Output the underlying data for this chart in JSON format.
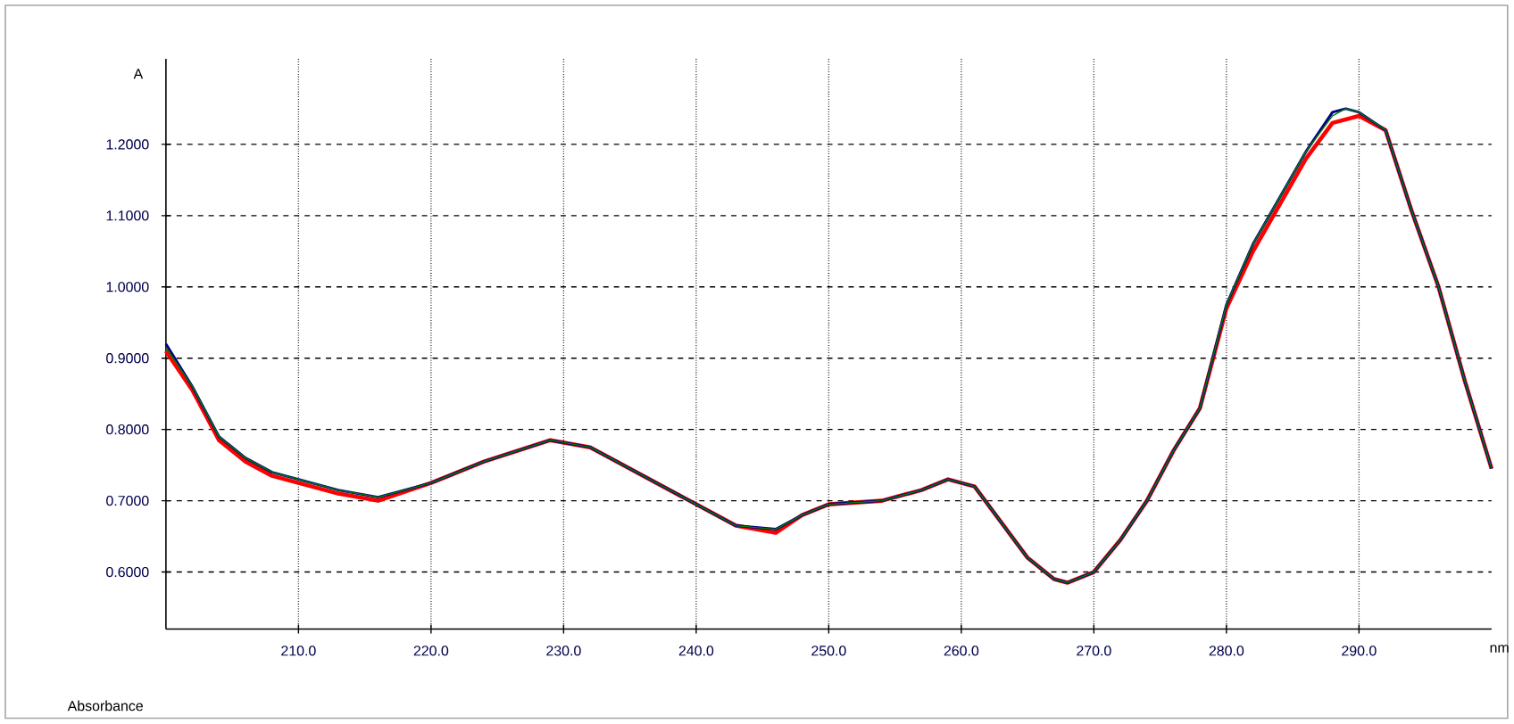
{
  "chart_data": {
    "type": "line",
    "xlabel": "nm",
    "ylabel": "A",
    "annotations": [
      "Absorbance"
    ],
    "xlim": [
      200,
      300
    ],
    "ylim": [
      0.52,
      1.32
    ],
    "grid": true,
    "marker": "none",
    "line_style": "solid",
    "xticks": [
      {
        "value": 210,
        "label": "210.0"
      },
      {
        "value": 220,
        "label": "220.0"
      },
      {
        "value": 230,
        "label": "230.0"
      },
      {
        "value": 240,
        "label": "240.0"
      },
      {
        "value": 250,
        "label": "250.0"
      },
      {
        "value": 260,
        "label": "260.0"
      },
      {
        "value": 270,
        "label": "270.0"
      },
      {
        "value": 280,
        "label": "280.0"
      },
      {
        "value": 290,
        "label": "290.0"
      }
    ],
    "yticks": [
      {
        "value": 0.6,
        "label": "0.6000"
      },
      {
        "value": 0.7,
        "label": "0.7000"
      },
      {
        "value": 0.8,
        "label": "0.8000"
      },
      {
        "value": 0.9,
        "label": "0.9000"
      },
      {
        "value": 1.0,
        "label": "1.0000"
      },
      {
        "value": 1.1,
        "label": "1.1000"
      },
      {
        "value": 1.2,
        "label": "1.2000"
      }
    ],
    "x": [
      200,
      202,
      204,
      206,
      208,
      210,
      213,
      216,
      220,
      224,
      229,
      232,
      236,
      240,
      243,
      246,
      248,
      250,
      254,
      257,
      259,
      261,
      263,
      265,
      267,
      268,
      270,
      272,
      274,
      276,
      278,
      280,
      282,
      284,
      286,
      288,
      289,
      290,
      292,
      294,
      296,
      298,
      300
    ],
    "series": [
      {
        "color": "#ff0000",
        "values": [
          0.91,
          0.855,
          0.785,
          0.755,
          0.735,
          0.725,
          0.71,
          0.7,
          0.725,
          0.755,
          0.785,
          0.775,
          0.735,
          0.695,
          0.665,
          0.655,
          0.68,
          0.695,
          0.7,
          0.715,
          0.73,
          0.72,
          0.67,
          0.62,
          0.59,
          0.585,
          0.6,
          0.645,
          0.7,
          0.77,
          0.83,
          0.97,
          1.05,
          1.115,
          1.18,
          1.23,
          1.235,
          1.24,
          1.22,
          1.105,
          1.0,
          0.867,
          0.745
        ]
      },
      {
        "color": "#000080",
        "values": [
          0.92,
          0.86,
          0.79,
          0.76,
          0.74,
          0.73,
          0.715,
          0.705,
          0.725,
          0.755,
          0.785,
          0.775,
          0.735,
          0.695,
          0.665,
          0.66,
          0.68,
          0.695,
          0.7,
          0.715,
          0.73,
          0.72,
          0.67,
          0.62,
          0.59,
          0.585,
          0.6,
          0.645,
          0.7,
          0.77,
          0.83,
          0.975,
          1.06,
          1.125,
          1.19,
          1.245,
          1.25,
          1.245,
          1.22,
          1.105,
          1.0,
          0.867,
          0.745
        ]
      },
      {
        "color": "#008000",
        "values": [
          0.915,
          0.86,
          0.79,
          0.76,
          0.74,
          0.73,
          0.715,
          0.705,
          0.725,
          0.755,
          0.785,
          0.775,
          0.735,
          0.695,
          0.665,
          0.66,
          0.68,
          0.695,
          0.7,
          0.715,
          0.73,
          0.72,
          0.67,
          0.62,
          0.59,
          0.585,
          0.6,
          0.645,
          0.7,
          0.77,
          0.83,
          0.975,
          1.06,
          1.125,
          1.19,
          1.24,
          1.25,
          1.245,
          1.22,
          1.105,
          1.0,
          0.867,
          0.745
        ]
      }
    ]
  }
}
